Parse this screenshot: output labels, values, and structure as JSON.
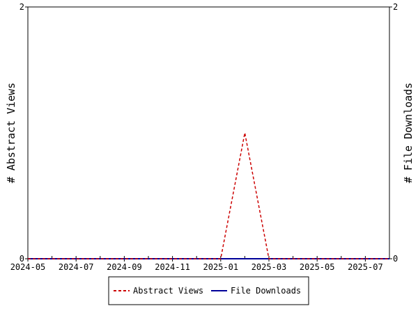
{
  "chart_data": {
    "type": "line",
    "title": "",
    "ylabel_left": "# Abstract Views",
    "ylabel_right": "# File Downloads",
    "x_ticks": [
      "2024-05",
      "2024-06",
      "2024-07",
      "2024-08",
      "2024-09",
      "2024-10",
      "2024-11",
      "2024-12",
      "2025-01",
      "2025-02",
      "2025-03",
      "2025-04",
      "2025-05",
      "2025-06",
      "2025-07",
      "2025-08"
    ],
    "x_tick_labels": [
      "2024-05",
      "2024-07",
      "2024-09",
      "2024-11",
      "2025-01",
      "2025-03",
      "2025-05",
      "2025-07"
    ],
    "xlim": [
      "2024-05",
      "2025-08"
    ],
    "ylim_left": [
      0,
      2
    ],
    "ylim_right": [
      0,
      2
    ],
    "y_ticks_left": [
      "0",
      "2"
    ],
    "y_ticks_right": [
      "0",
      "2"
    ],
    "grid": false,
    "legend_position": "bottom",
    "series": [
      {
        "name": "Abstract Views",
        "axis": "left",
        "color": "#cc0000",
        "style": "dashed",
        "x": [
          "2024-05",
          "2024-06",
          "2024-07",
          "2024-08",
          "2024-09",
          "2024-10",
          "2024-11",
          "2024-12",
          "2025-01",
          "2025-02",
          "2025-03",
          "2025-04",
          "2025-05",
          "2025-06",
          "2025-07",
          "2025-08"
        ],
        "values": [
          0,
          0,
          0,
          0,
          0,
          0,
          0,
          0,
          0,
          1,
          0,
          0,
          0,
          0,
          0,
          0
        ]
      },
      {
        "name": "File Downloads",
        "axis": "right",
        "color": "#000099",
        "style": "solid",
        "x": [
          "2024-05",
          "2024-06",
          "2024-07",
          "2024-08",
          "2024-09",
          "2024-10",
          "2024-11",
          "2024-12",
          "2025-01",
          "2025-02",
          "2025-03",
          "2025-04",
          "2025-05",
          "2025-06",
          "2025-07",
          "2025-08"
        ],
        "values": [
          0,
          0,
          0,
          0,
          0,
          0,
          0,
          0,
          0,
          0,
          0,
          0,
          0,
          0,
          0,
          0
        ]
      }
    ]
  }
}
